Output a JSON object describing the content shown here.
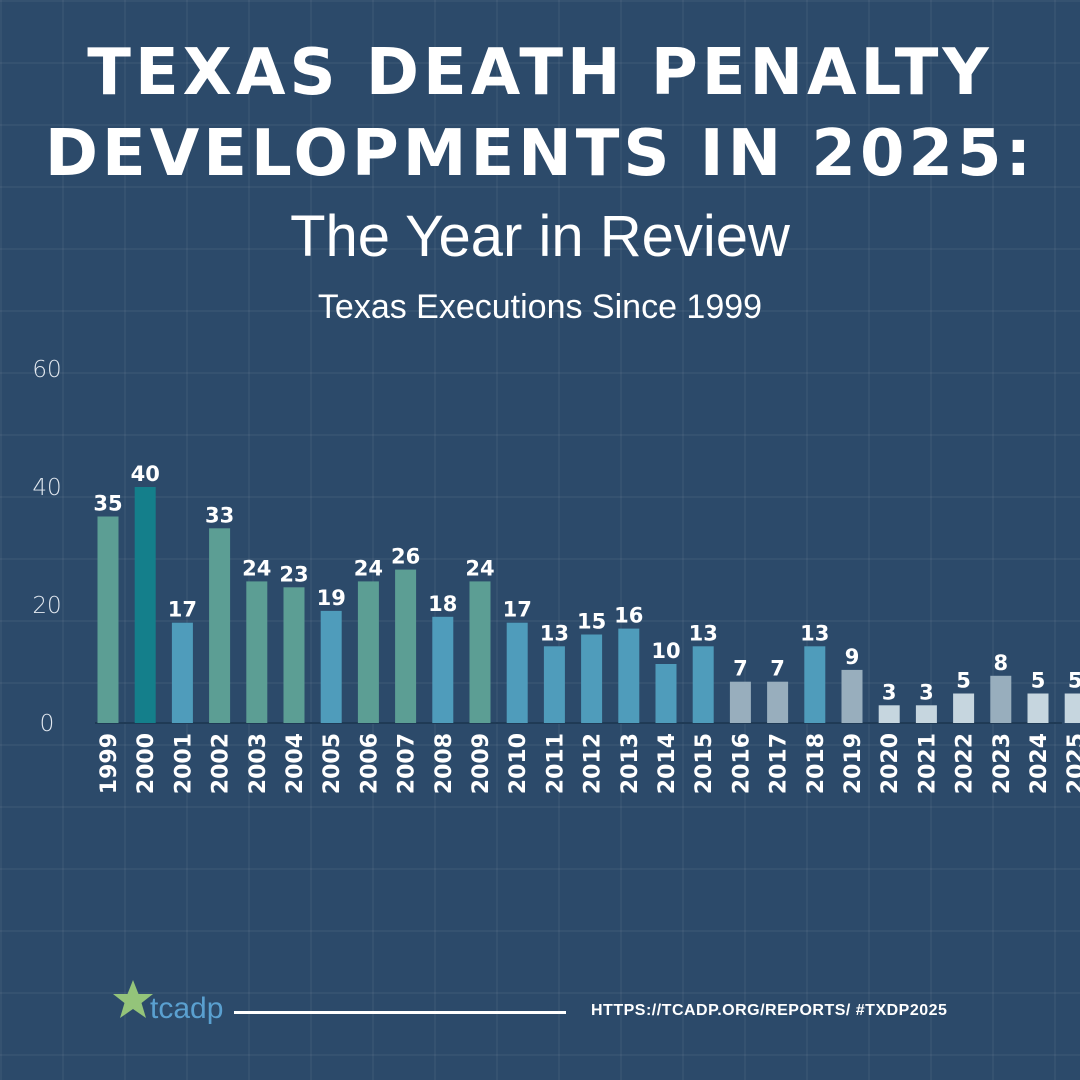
{
  "header": {
    "title_line1": "TEXAS DEATH PENALTY",
    "title_line2": "DEVELOPMENTS IN 2025:",
    "subtitle": "The Year in Review"
  },
  "chart_data": {
    "type": "bar",
    "title": "Texas Executions Since 1999",
    "xlabel": "",
    "ylabel": "",
    "ylim": [
      0,
      60
    ],
    "yticks": [
      0,
      20,
      40,
      60
    ],
    "grid": false,
    "categories": [
      "1999",
      "2000",
      "2001",
      "2002",
      "2003",
      "2004",
      "2005",
      "2006",
      "2007",
      "2008",
      "2009",
      "2010",
      "2011",
      "2012",
      "2013",
      "2014",
      "2015",
      "2016",
      "2017",
      "2018",
      "2019",
      "2020",
      "2021",
      "2022",
      "2023",
      "2024",
      "2025"
    ],
    "values": [
      35,
      40,
      17,
      33,
      24,
      23,
      19,
      24,
      26,
      18,
      24,
      17,
      13,
      15,
      16,
      10,
      13,
      7,
      7,
      13,
      9,
      3,
      3,
      5,
      8,
      5,
      5
    ],
    "bar_colors": [
      "#5c9e94",
      "#147f8b",
      "#4f9cbb",
      "#5c9e94",
      "#5c9e94",
      "#5c9e94",
      "#4f9cbb",
      "#5c9e94",
      "#5c9e94",
      "#4f9cbb",
      "#5c9e94",
      "#4f9cbb",
      "#4f9cbb",
      "#4f9cbb",
      "#4f9cbb",
      "#4f9cbb",
      "#4f9cbb",
      "#98aebd",
      "#98aebd",
      "#4f9cbb",
      "#98aebd",
      "#c6d6df",
      "#c6d6df",
      "#c6d6df",
      "#98aebd",
      "#c6d6df",
      "#c6d6df"
    ]
  },
  "footer": {
    "logo_text": "tcadp",
    "link_text": "HTTPS://TCADP.ORG/REPORTS/ #TXDP2025",
    "logo_star_color": "#94c47a",
    "logo_text_color": "#5aa0d0"
  }
}
